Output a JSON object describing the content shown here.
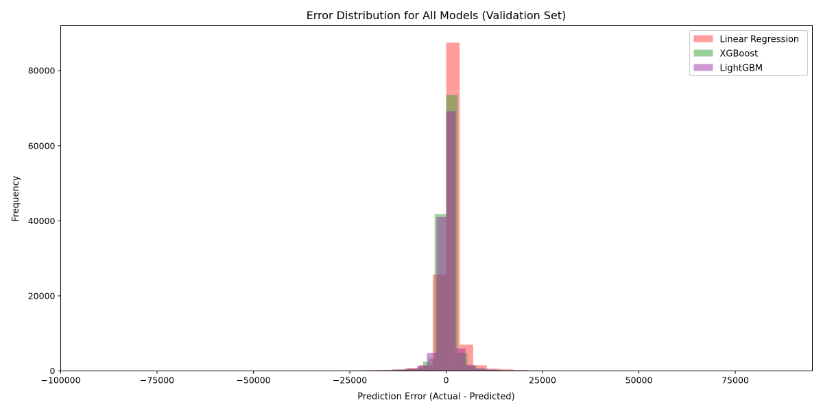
{
  "chart_data": {
    "type": "bar",
    "subtype": "overlapping-histogram",
    "title": "Error Distribution for All Models (Validation Set)",
    "xlabel": "Prediction Error (Actual - Predicted)",
    "ylabel": "Frequency",
    "xlim": [
      -100000,
      95000
    ],
    "ylim": [
      0,
      92000
    ],
    "x_ticks": [
      -100000,
      -75000,
      -50000,
      -25000,
      0,
      25000,
      50000,
      75000
    ],
    "x_tick_labels": [
      "−100000",
      "−75000",
      "−50000",
      "−25000",
      "0",
      "25000",
      "50000",
      "75000"
    ],
    "y_ticks": [
      0,
      20000,
      40000,
      60000,
      80000
    ],
    "y_tick_labels": [
      "0",
      "20000",
      "40000",
      "60000",
      "80000"
    ],
    "grid": false,
    "legend_position": "top-right",
    "series": [
      {
        "name": "Linear Regression",
        "color": "#ff3b3b",
        "opacity": 0.5,
        "bins": [
          {
            "x0": -28000,
            "x1": -24500,
            "count": 100
          },
          {
            "x0": -24500,
            "x1": -21000,
            "count": 150
          },
          {
            "x0": -21000,
            "x1": -17500,
            "count": 200
          },
          {
            "x0": -17500,
            "x1": -14000,
            "count": 250
          },
          {
            "x0": -14000,
            "x1": -10500,
            "count": 400
          },
          {
            "x0": -10500,
            "x1": -7000,
            "count": 700
          },
          {
            "x0": -7000,
            "x1": -3500,
            "count": 1500
          },
          {
            "x0": -3500,
            "x1": 0,
            "count": 25700
          },
          {
            "x0": 0,
            "x1": 3500,
            "count": 87500
          },
          {
            "x0": 3500,
            "x1": 7000,
            "count": 7000
          },
          {
            "x0": 7000,
            "x1": 10500,
            "count": 1500
          },
          {
            "x0": 10500,
            "x1": 14000,
            "count": 600
          },
          {
            "x0": 14000,
            "x1": 17500,
            "count": 400
          },
          {
            "x0": 17500,
            "x1": 21000,
            "count": 250
          },
          {
            "x0": 21000,
            "x1": 24500,
            "count": 150
          },
          {
            "x0": 24500,
            "x1": 29000,
            "count": 100
          }
        ]
      },
      {
        "name": "XGBoost",
        "color": "#3aa236",
        "opacity": 0.5,
        "bins": [
          {
            "x0": -25000,
            "x1": -21500,
            "count": 100
          },
          {
            "x0": -21500,
            "x1": -18000,
            "count": 150
          },
          {
            "x0": -18000,
            "x1": -14500,
            "count": 200
          },
          {
            "x0": -14500,
            "x1": -11000,
            "count": 300
          },
          {
            "x0": -11000,
            "x1": -7500,
            "count": 500
          },
          {
            "x0": -7500,
            "x1": -6000,
            "count": 900
          },
          {
            "x0": -6000,
            "x1": -4500,
            "count": 2500
          },
          {
            "x0": -4500,
            "x1": -3000,
            "count": 3300
          },
          {
            "x0": -3000,
            "x1": 0,
            "count": 41800
          },
          {
            "x0": 0,
            "x1": 3000,
            "count": 73500
          },
          {
            "x0": 3000,
            "x1": 5500,
            "count": 4800
          },
          {
            "x0": 5500,
            "x1": 8000,
            "count": 1300
          },
          {
            "x0": 8000,
            "x1": 11000,
            "count": 600
          },
          {
            "x0": 11000,
            "x1": 14500,
            "count": 300
          },
          {
            "x0": 14500,
            "x1": 18000,
            "count": 200
          },
          {
            "x0": 18000,
            "x1": 21500,
            "count": 150
          },
          {
            "x0": 21500,
            "x1": 25000,
            "count": 100
          }
        ]
      },
      {
        "name": "LightGBM",
        "color": "#9b2fa3",
        "opacity": 0.5,
        "bins": [
          {
            "x0": -22000,
            "x1": -19000,
            "count": 100
          },
          {
            "x0": -19000,
            "x1": -16000,
            "count": 150
          },
          {
            "x0": -16000,
            "x1": -13000,
            "count": 200
          },
          {
            "x0": -13000,
            "x1": -10000,
            "count": 350
          },
          {
            "x0": -10000,
            "x1": -7500,
            "count": 700
          },
          {
            "x0": -7500,
            "x1": -5000,
            "count": 1400
          },
          {
            "x0": -5000,
            "x1": -2500,
            "count": 4800
          },
          {
            "x0": -2500,
            "x1": 0,
            "count": 41000
          },
          {
            "x0": 0,
            "x1": 2500,
            "count": 69200
          },
          {
            "x0": 2500,
            "x1": 5000,
            "count": 6000
          },
          {
            "x0": 5000,
            "x1": 7500,
            "count": 1600
          },
          {
            "x0": 7500,
            "x1": 10000,
            "count": 700
          },
          {
            "x0": 10000,
            "x1": 13000,
            "count": 350
          },
          {
            "x0": 13000,
            "x1": 16000,
            "count": 200
          },
          {
            "x0": 16000,
            "x1": 20000,
            "count": 150
          },
          {
            "x0": 20000,
            "x1": 28000,
            "count": 100
          }
        ]
      }
    ]
  }
}
